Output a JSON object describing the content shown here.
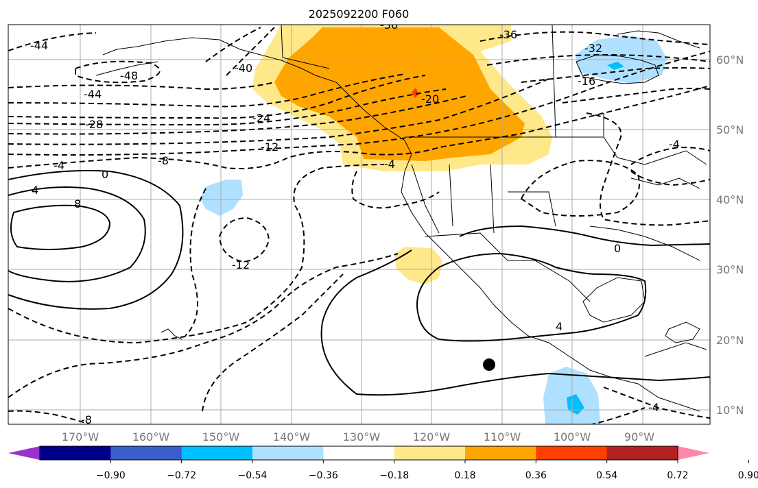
{
  "title": "2025092200 F060",
  "longitude_ticks": [
    "170°W",
    "160°W",
    "150°W",
    "140°W",
    "130°W",
    "120°W",
    "110°W",
    "100°W",
    "90°W"
  ],
  "latitude_ticks": [
    "60°N",
    "50°N",
    "40°N",
    "30°N",
    "20°N",
    "10°N"
  ],
  "contour_labels": [
    "-44",
    "-48",
    "-44",
    "-28",
    "-40",
    "-24",
    "-12",
    "-8",
    "-4",
    "-36",
    "-32",
    "-16",
    "-20",
    "-36",
    "0",
    "4",
    "8",
    "-12",
    "-4",
    "0",
    "4",
    "-8",
    "-4",
    "-4"
  ],
  "colorbar": {
    "colors": [
      "#9932cc",
      "#00008b",
      "#3a5fcd",
      "#00bfff",
      "#b0e0ff",
      "#ffffff",
      "#ffe88a",
      "#ffa500",
      "#ff3f00",
      "#b22222",
      "#ff88aa"
    ],
    "ticks": [
      "−0.90",
      "−0.72",
      "−0.54",
      "−0.36",
      "−0.18",
      "0.18",
      "0.36",
      "0.54",
      "0.72",
      "0.90"
    ]
  },
  "marker": "storm-center-dot"
}
